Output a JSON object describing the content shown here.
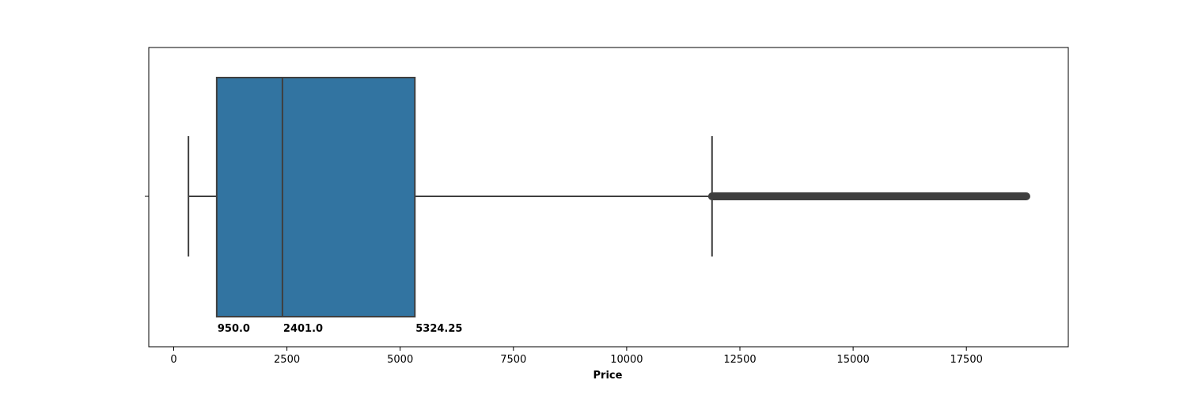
{
  "chart_data": {
    "type": "boxplot",
    "orientation": "horizontal",
    "xlabel": "Price",
    "ylabel": "",
    "xlim": [
      -550,
      19750
    ],
    "xticks": [
      0,
      2500,
      5000,
      7500,
      10000,
      12500,
      15000,
      17500
    ],
    "xtick_labels": [
      "0",
      "2500",
      "5000",
      "7500",
      "10000",
      "12500",
      "15000",
      "17500"
    ],
    "grid": false,
    "box": {
      "whisker_low": 326,
      "q1": 950.0,
      "median": 2401.0,
      "q3": 5324.25,
      "whisker_high": 11885,
      "outliers_range": [
        11886,
        18823
      ]
    },
    "annotations": [
      {
        "text": "950.0",
        "x": 950.0
      },
      {
        "text": "2401.0",
        "x": 2401.0
      },
      {
        "text": "5324.25",
        "x": 5324.25
      }
    ],
    "colors": {
      "box_fill": "#3274a1",
      "lines": "#3f3f3f",
      "axes": "#000000",
      "text": "#000000"
    }
  }
}
